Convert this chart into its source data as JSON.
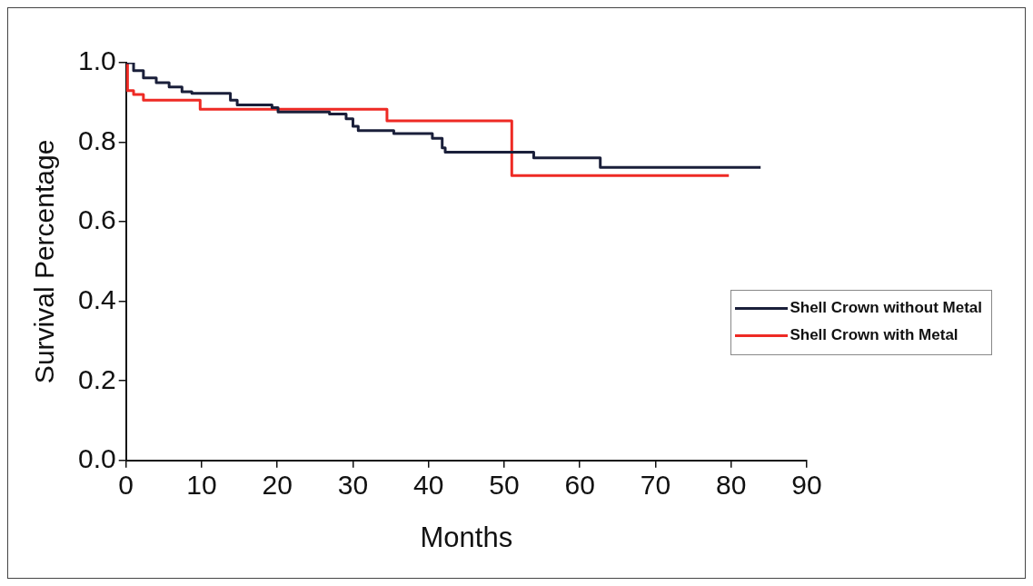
{
  "chart_data": {
    "type": "step",
    "xlabel": "Months",
    "ylabel": "Survival Percentage",
    "xlim": [
      0,
      90
    ],
    "xticks": [
      0,
      10,
      20,
      30,
      40,
      50,
      60,
      70,
      80,
      90
    ],
    "ylim": [
      0,
      1
    ],
    "yticks": [
      {
        "value": 0,
        "label": "0.0"
      },
      {
        "value": 0.2,
        "label": "0.2"
      },
      {
        "value": 0.4,
        "label": "0.4"
      },
      {
        "value": 0.6,
        "label": "0.6"
      },
      {
        "value": 0.8,
        "label": "0.8"
      },
      {
        "value": 1,
        "label": "1.0"
      }
    ],
    "grid": false,
    "legend": "right",
    "marker": "none",
    "series": [
      {
        "name": "Shell Crown without Metal",
        "color": "#1a1f3a",
        "x": [
          0,
          1,
          2.3,
          4,
          5.7,
          7.4,
          8.7,
          13.8,
          14.7,
          19.3,
          20.1,
          26.9,
          29.1,
          30,
          30.7,
          35.4,
          40.5,
          41.8,
          42.2,
          53.9,
          62.7,
          83.9
        ],
        "values": [
          1,
          0.98,
          0.962,
          0.95,
          0.939,
          0.927,
          0.923,
          0.906,
          0.894,
          0.887,
          0.876,
          0.871,
          0.859,
          0.84,
          0.829,
          0.822,
          0.81,
          0.786,
          0.775,
          0.761,
          0.737,
          0.737
        ]
      },
      {
        "name": "Shell Crown with Metal",
        "color": "#ee2a24",
        "x": [
          0,
          0.2,
          1,
          2.3,
          9.8,
          34.5,
          51,
          79.7
        ],
        "values": [
          1,
          0.93,
          0.92,
          0.906,
          0.883,
          0.854,
          0.716,
          0.716
        ]
      }
    ]
  }
}
